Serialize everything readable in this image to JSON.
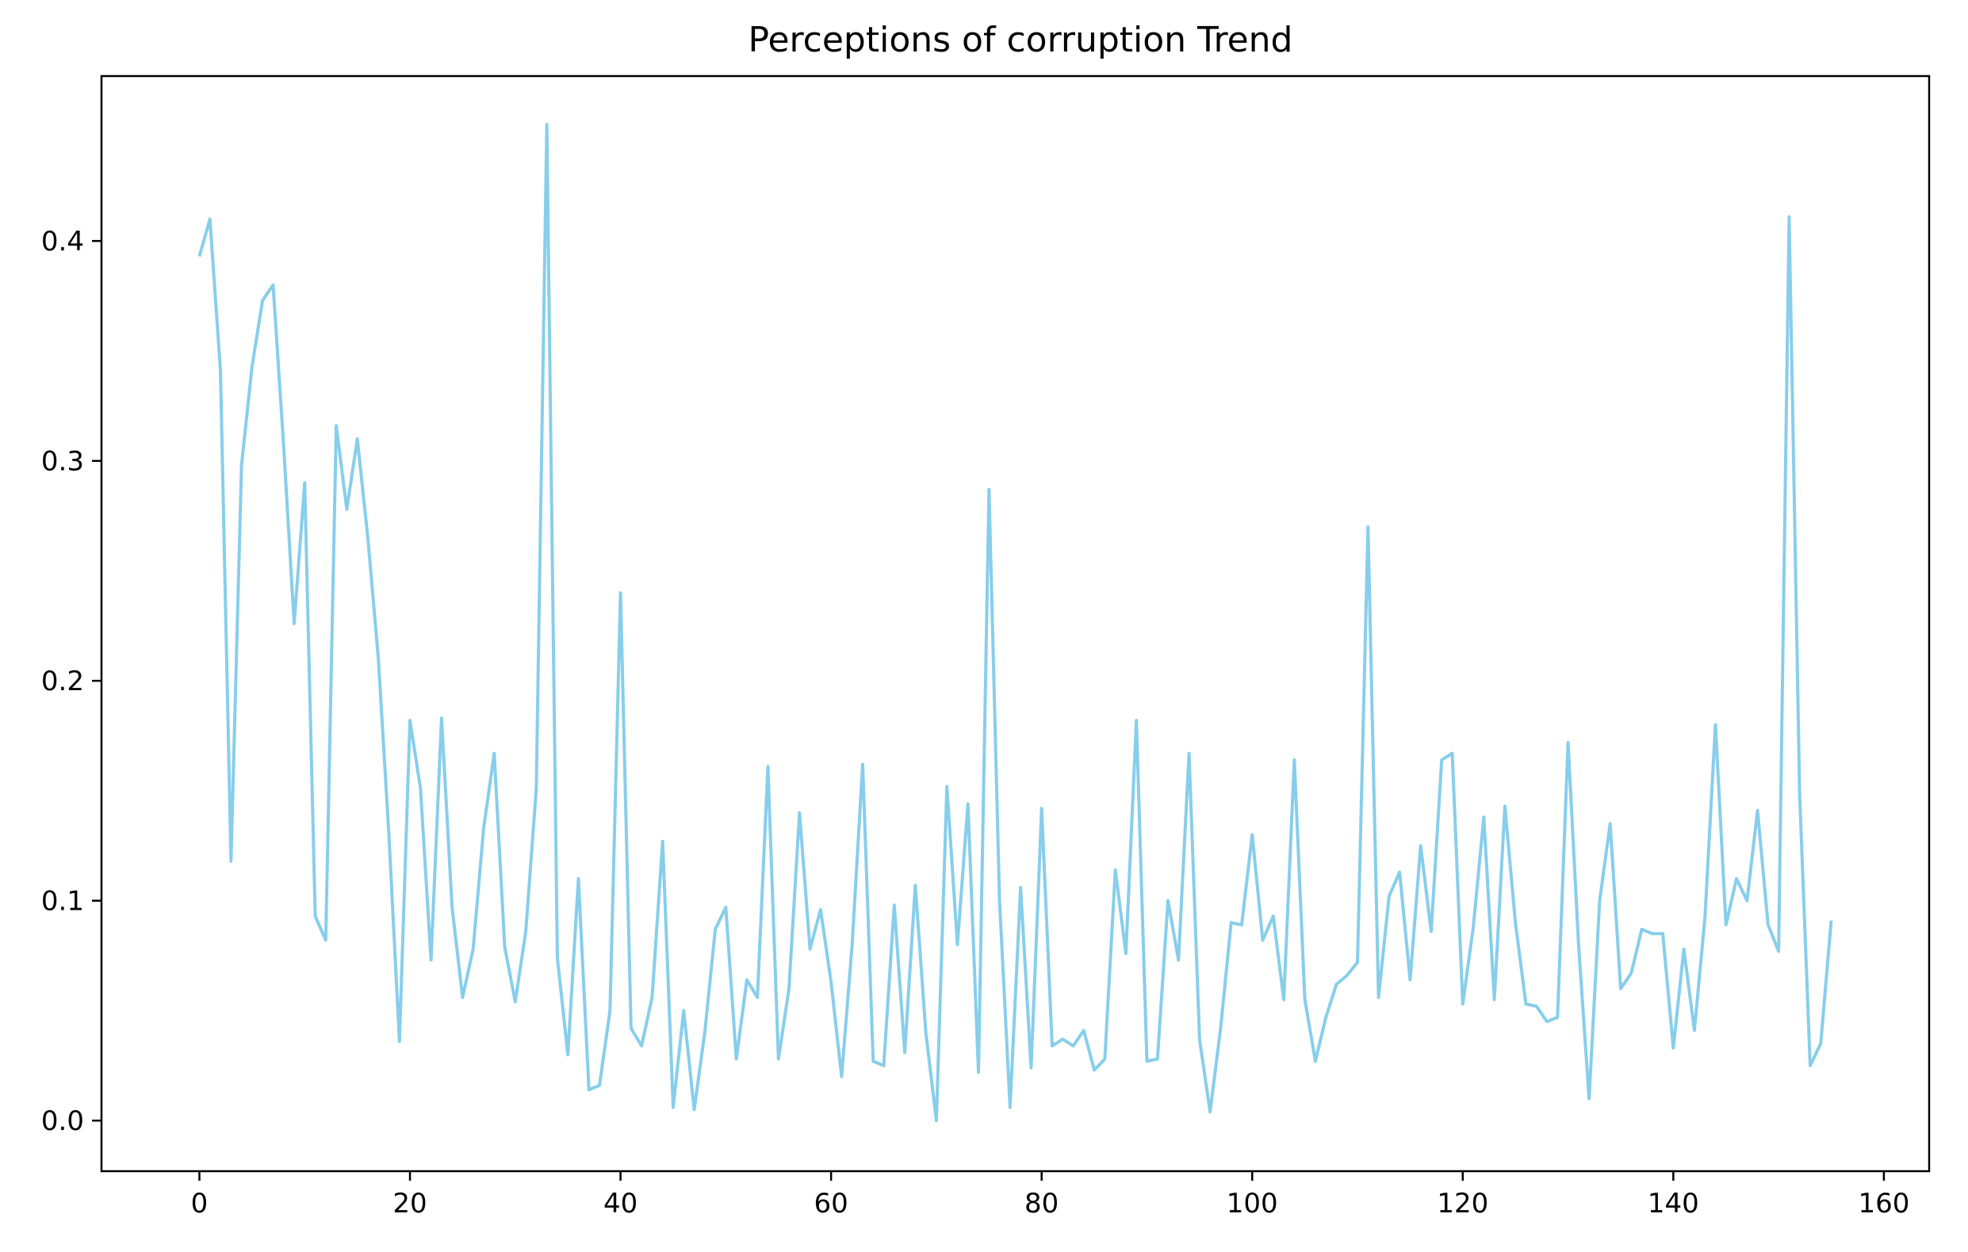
{
  "chart_data": {
    "type": "line",
    "title": "Perceptions of corruption Trend",
    "xlabel": "",
    "ylabel": "",
    "xlim": [
      -9.3,
      164.3
    ],
    "ylim": [
      -0.023,
      0.475
    ],
    "x_ticks": [
      0,
      20,
      40,
      60,
      80,
      100,
      120,
      140,
      160
    ],
    "y_ticks": [
      0.0,
      0.1,
      0.2,
      0.3,
      0.4
    ],
    "x_tick_labels": [
      "0",
      "20",
      "40",
      "60",
      "80",
      "100",
      "120",
      "140",
      "160"
    ],
    "y_tick_labels": [
      "0.0",
      "0.1",
      "0.2",
      "0.3",
      "0.4"
    ],
    "grid": false,
    "legend": "none",
    "line_color": "#87ceeb",
    "series": [
      {
        "values": [
          0.393,
          0.41,
          0.341,
          0.118,
          0.298,
          0.343,
          0.373,
          0.38,
          0.307,
          0.226,
          0.29,
          0.093,
          0.082,
          0.316,
          0.278,
          0.31,
          0.265,
          0.21,
          0.13,
          0.036,
          0.182,
          0.151,
          0.073,
          0.183,
          0.097,
          0.056,
          0.078,
          0.133,
          0.167,
          0.079,
          0.054,
          0.086,
          0.151,
          0.453,
          0.074,
          0.03,
          0.11,
          0.014,
          0.016,
          0.05,
          0.24,
          0.042,
          0.034,
          0.056,
          0.127,
          0.006,
          0.05,
          0.005,
          0.04,
          0.087,
          0.097,
          0.028,
          0.064,
          0.056,
          0.161,
          0.028,
          0.06,
          0.14,
          0.078,
          0.096,
          0.063,
          0.02,
          0.08,
          0.162,
          0.027,
          0.025,
          0.098,
          0.031,
          0.107,
          0.04,
          0.0,
          0.152,
          0.08,
          0.144,
          0.022,
          0.287,
          0.1,
          0.006,
          0.106,
          0.024,
          0.142,
          0.034,
          0.037,
          0.034,
          0.041,
          0.023,
          0.028,
          0.114,
          0.076,
          0.182,
          0.027,
          0.028,
          0.1,
          0.073,
          0.167,
          0.037,
          0.004,
          0.042,
          0.09,
          0.089,
          0.13,
          0.082,
          0.093,
          0.055,
          0.164,
          0.055,
          0.027,
          0.047,
          0.062,
          0.066,
          0.072,
          0.27,
          0.056,
          0.102,
          0.113,
          0.064,
          0.125,
          0.086,
          0.164,
          0.167,
          0.053,
          0.088,
          0.138,
          0.055,
          0.143,
          0.09,
          0.053,
          0.052,
          0.045,
          0.047,
          0.172,
          0.08,
          0.01,
          0.1,
          0.135,
          0.06,
          0.067,
          0.087,
          0.085,
          0.085,
          0.033,
          0.078,
          0.041,
          0.092,
          0.18,
          0.089,
          0.11,
          0.1,
          0.141,
          0.089,
          0.077,
          0.411,
          0.148,
          0.025,
          0.035,
          0.091
        ]
      }
    ]
  }
}
